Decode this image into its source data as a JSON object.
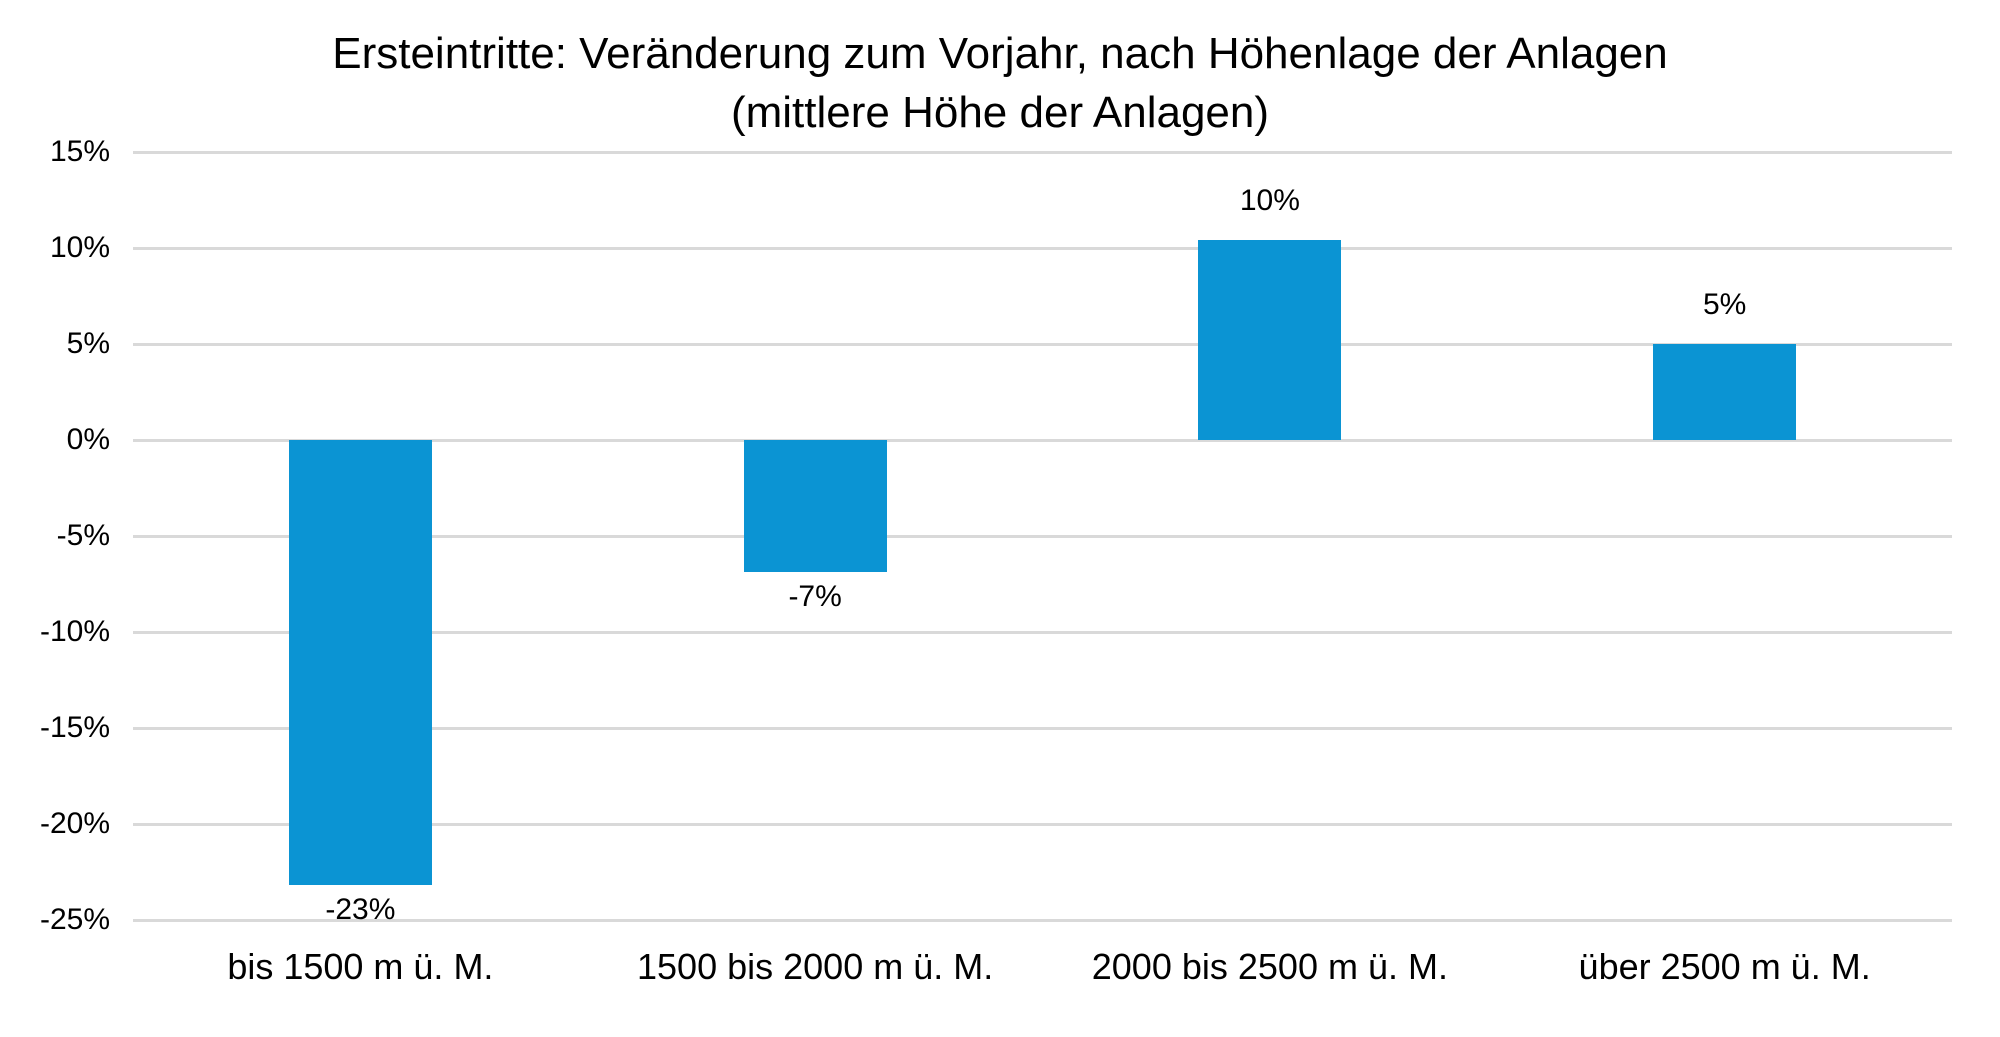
{
  "chart_data": {
    "type": "bar",
    "title": "Ersteintritte: Veränderung zum Vorjahr, nach Höhenlage der Anlagen",
    "subtitle": "(mittlere Höhe der Anlagen)",
    "categories": [
      "bis 1500 m ü. M.",
      "1500 bis 2000 m ü. M.",
      "2000 bis 2500 m ü. M.",
      "über 2500 m ü. M."
    ],
    "values": [
      -23,
      -7,
      10,
      5
    ],
    "data_labels": [
      "-23%",
      "-7%",
      "10%",
      "5%"
    ],
    "plot_values": [
      -23.2,
      -6.9,
      10.4,
      5.0
    ],
    "ylim": [
      -25,
      15
    ],
    "ytick_step": 5,
    "ytick_labels": [
      "15%",
      "10%",
      "5%",
      "0%",
      "-5%",
      "-10%",
      "-15%",
      "-20%",
      "-25%"
    ],
    "ytick_values": [
      15,
      10,
      5,
      0,
      -5,
      -10,
      -15,
      -20,
      -25
    ],
    "xlabel": "",
    "ylabel": "",
    "grid": true,
    "legend": "none",
    "bar_color": "#0b94d3",
    "gridline_color": "#d9d9d9",
    "text_color": "#000000",
    "background_color": "#ffffff"
  }
}
